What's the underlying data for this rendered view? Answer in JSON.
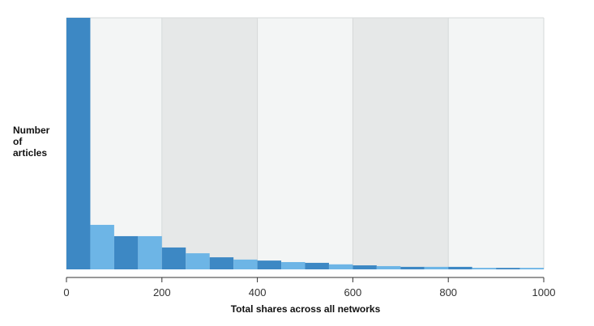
{
  "chart_data": {
    "type": "bar",
    "title": "",
    "xlabel": "Total shares across all networks",
    "ylabel": "Number\nof\narticles",
    "xlim": [
      0,
      1000
    ],
    "ylim": [
      0,
      100
    ],
    "x_ticks": [
      0,
      200,
      400,
      600,
      800,
      1000
    ],
    "bin_width": 50,
    "bins": [
      {
        "start": 0,
        "end": 50,
        "value": 100
      },
      {
        "start": 50,
        "end": 100,
        "value": 17.7
      },
      {
        "start": 100,
        "end": 150,
        "value": 13.2
      },
      {
        "start": 150,
        "end": 200,
        "value": 13.2
      },
      {
        "start": 200,
        "end": 250,
        "value": 8.7
      },
      {
        "start": 250,
        "end": 300,
        "value": 6.4
      },
      {
        "start": 300,
        "end": 350,
        "value": 4.8
      },
      {
        "start": 350,
        "end": 400,
        "value": 3.9
      },
      {
        "start": 400,
        "end": 450,
        "value": 3.5
      },
      {
        "start": 450,
        "end": 500,
        "value": 2.9
      },
      {
        "start": 500,
        "end": 550,
        "value": 2.6
      },
      {
        "start": 550,
        "end": 600,
        "value": 2.0
      },
      {
        "start": 600,
        "end": 650,
        "value": 1.6
      },
      {
        "start": 650,
        "end": 700,
        "value": 1.3
      },
      {
        "start": 700,
        "end": 750,
        "value": 1.0
      },
      {
        "start": 750,
        "end": 800,
        "value": 1.0
      },
      {
        "start": 800,
        "end": 850,
        "value": 1.0
      },
      {
        "start": 850,
        "end": 900,
        "value": 0.6
      },
      {
        "start": 900,
        "end": 950,
        "value": 0.6
      },
      {
        "start": 950,
        "end": 1000,
        "value": 0.6
      }
    ],
    "background_bands": [
      {
        "start": 0,
        "end": 200,
        "shade": "light"
      },
      {
        "start": 200,
        "end": 400,
        "shade": "dark"
      },
      {
        "start": 400,
        "end": 600,
        "shade": "light"
      },
      {
        "start": 600,
        "end": 800,
        "shade": "dark"
      },
      {
        "start": 800,
        "end": 1000,
        "shade": "light"
      }
    ],
    "grid": true,
    "legend": "none",
    "colors": {
      "bar_dark": "#3d88c4",
      "bar_light": "#6db5e6",
      "band_light": "#f3f5f5",
      "band_dark": "#e6e8e8",
      "grid": "#d6d9d9",
      "axis": "#333333"
    }
  }
}
